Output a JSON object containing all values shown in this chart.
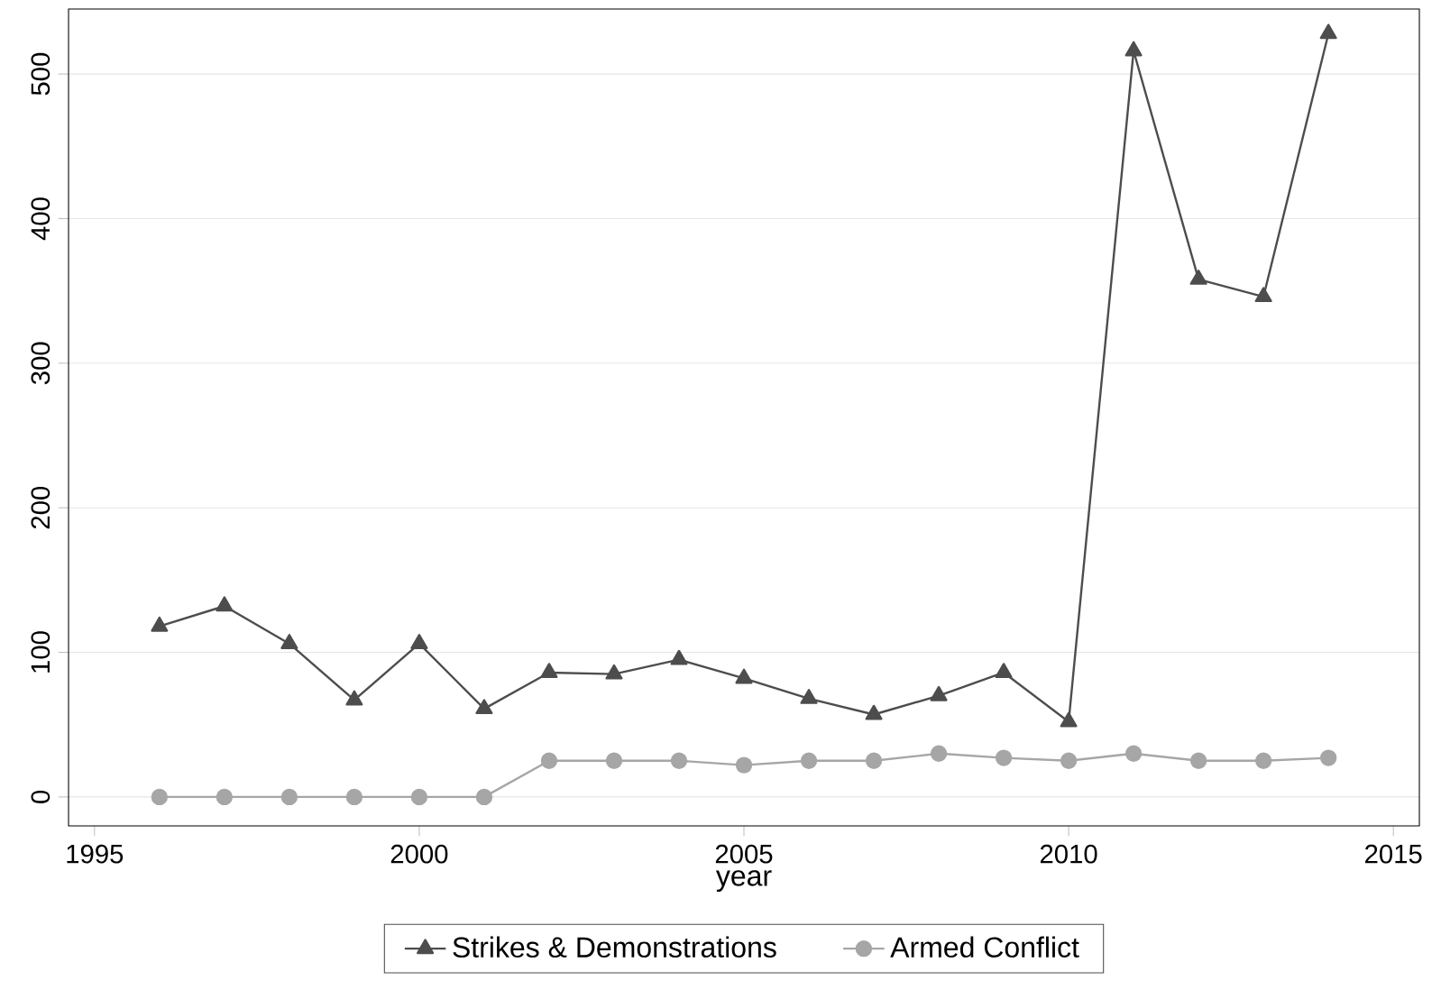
{
  "chart_data": {
    "type": "line",
    "xlabel": "year",
    "x": [
      1996,
      1997,
      1998,
      1999,
      2000,
      2001,
      2002,
      2003,
      2004,
      2005,
      2006,
      2007,
      2008,
      2009,
      2010,
      2011,
      2012,
      2013,
      2014
    ],
    "series": [
      {
        "name": "Strikes & Demonstrations",
        "color": "#4d4d4d",
        "marker": "triangle",
        "values": [
          118,
          132,
          106,
          67,
          106,
          61,
          86,
          85,
          95,
          82,
          68,
          57,
          70,
          86,
          52,
          516,
          358,
          346,
          528
        ]
      },
      {
        "name": "Armed Conflict",
        "color": "#a6a6a6",
        "marker": "circle",
        "values": [
          0,
          0,
          0,
          0,
          0,
          0,
          25,
          25,
          25,
          22,
          25,
          25,
          30,
          27,
          25,
          30,
          25,
          25,
          27
        ]
      }
    ],
    "xlim": [
      1994.6,
      2015.4
    ],
    "ylim": [
      -20,
      545
    ],
    "xticks": [
      1995,
      2000,
      2005,
      2010,
      2015
    ],
    "yticks": [
      0,
      100,
      200,
      300,
      400,
      500
    ],
    "grid": "y",
    "legend": "bottom",
    "line_style": "solid"
  }
}
